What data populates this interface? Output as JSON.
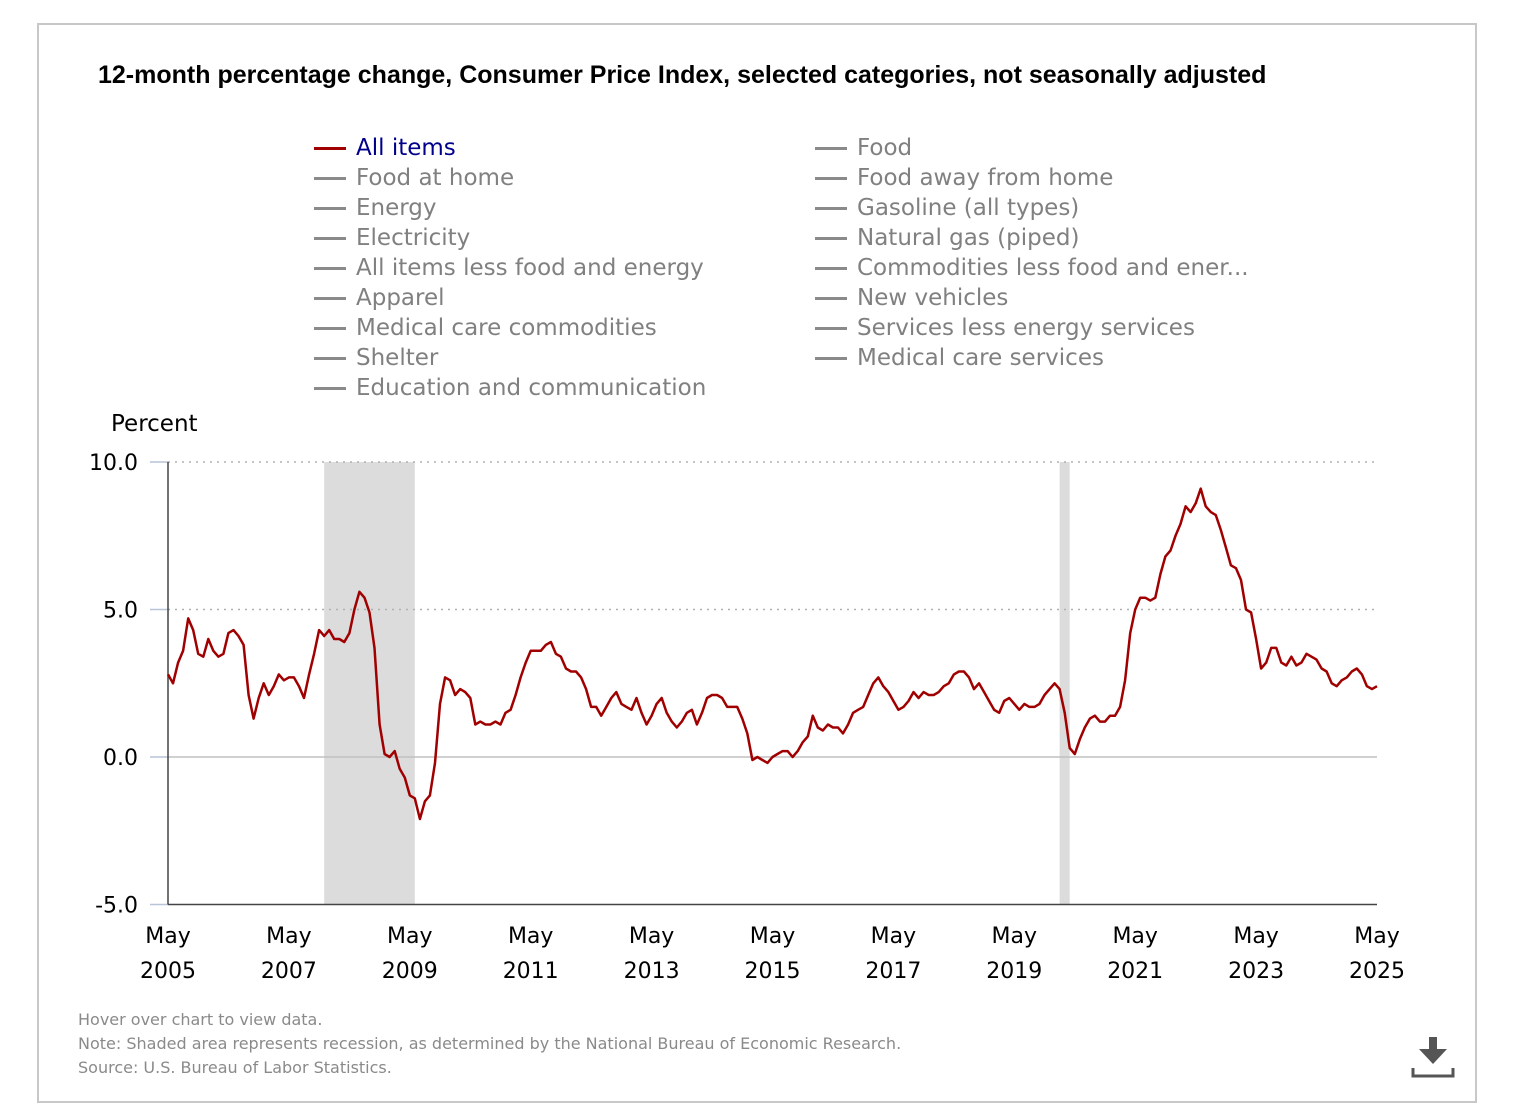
{
  "chart_data": {
    "type": "line",
    "title": "12-month percentage change, Consumer Price Index, selected categories, not seasonally adjusted",
    "ylabel": "Percent",
    "xlabel": "",
    "ylim": [
      -5,
      10
    ],
    "yticks": [
      "10.0",
      "5.0",
      "0.0",
      "-5.0"
    ],
    "ytick_values": [
      10,
      5,
      0,
      -5
    ],
    "x_start": "May 2005",
    "x_end": "May 2025",
    "xticks": [
      {
        "month": "May",
        "year": "2005",
        "index": 0
      },
      {
        "month": "May",
        "year": "2007",
        "index": 24
      },
      {
        "month": "May",
        "year": "2009",
        "index": 48
      },
      {
        "month": "May",
        "year": "2011",
        "index": 72
      },
      {
        "month": "May",
        "year": "2013",
        "index": 96
      },
      {
        "month": "May",
        "year": "2015",
        "index": 120
      },
      {
        "month": "May",
        "year": "2017",
        "index": 144
      },
      {
        "month": "May",
        "year": "2019",
        "index": 168
      },
      {
        "month": "May",
        "year": "2021",
        "index": 192
      },
      {
        "month": "May",
        "year": "2023",
        "index": 216
      },
      {
        "month": "May",
        "year": "2025",
        "index": 240
      }
    ],
    "grid": "horizontal dotted",
    "recessions": [
      {
        "start": "Dec 2007",
        "end": "Jun 2009",
        "start_index": 31,
        "end_index": 49
      },
      {
        "start": "Feb 2020",
        "end": "Apr 2020",
        "start_index": 177,
        "end_index": 179
      }
    ],
    "series": [
      {
        "name": "All items",
        "color": "#a00000",
        "values": [
          2.8,
          2.5,
          3.2,
          3.6,
          4.7,
          4.3,
          3.5,
          3.4,
          4.0,
          3.6,
          3.4,
          3.5,
          4.2,
          4.3,
          4.1,
          3.8,
          2.1,
          1.3,
          2.0,
          2.5,
          2.1,
          2.4,
          2.8,
          2.6,
          2.7,
          2.7,
          2.4,
          2.0,
          2.8,
          3.5,
          4.3,
          4.1,
          4.3,
          4.0,
          4.0,
          3.9,
          4.2,
          5.0,
          5.6,
          5.4,
          4.9,
          3.7,
          1.1,
          0.1,
          0.0,
          0.2,
          -0.4,
          -0.7,
          -1.3,
          -1.4,
          -2.1,
          -1.5,
          -1.3,
          -0.2,
          1.8,
          2.7,
          2.6,
          2.1,
          2.3,
          2.2,
          2.0,
          1.1,
          1.2,
          1.1,
          1.1,
          1.2,
          1.1,
          1.5,
          1.6,
          2.1,
          2.7,
          3.2,
          3.6,
          3.6,
          3.6,
          3.8,
          3.9,
          3.5,
          3.4,
          3.0,
          2.9,
          2.9,
          2.7,
          2.3,
          1.7,
          1.7,
          1.4,
          1.7,
          2.0,
          2.2,
          1.8,
          1.7,
          1.6,
          2.0,
          1.5,
          1.1,
          1.4,
          1.8,
          2.0,
          1.5,
          1.2,
          1.0,
          1.2,
          1.5,
          1.6,
          1.1,
          1.5,
          2.0,
          2.1,
          2.1,
          2.0,
          1.7,
          1.7,
          1.7,
          1.3,
          0.8,
          -0.1,
          0.0,
          -0.1,
          -0.2,
          0.0,
          0.1,
          0.2,
          0.2,
          0.0,
          0.2,
          0.5,
          0.7,
          1.4,
          1.0,
          0.9,
          1.1,
          1.0,
          1.0,
          0.8,
          1.1,
          1.5,
          1.6,
          1.7,
          2.1,
          2.5,
          2.7,
          2.4,
          2.2,
          1.9,
          1.6,
          1.7,
          1.9,
          2.2,
          2.0,
          2.2,
          2.1,
          2.1,
          2.2,
          2.4,
          2.5,
          2.8,
          2.9,
          2.9,
          2.7,
          2.3,
          2.5,
          2.2,
          1.9,
          1.6,
          1.5,
          1.9,
          2.0,
          1.8,
          1.6,
          1.8,
          1.7,
          1.7,
          1.8,
          2.1,
          2.3,
          2.5,
          2.3,
          1.5,
          0.3,
          0.1,
          0.6,
          1.0,
          1.3,
          1.4,
          1.2,
          1.2,
          1.4,
          1.4,
          1.7,
          2.6,
          4.2,
          5.0,
          5.4,
          5.4,
          5.3,
          5.4,
          6.2,
          6.8,
          7.0,
          7.5,
          7.9,
          8.5,
          8.3,
          8.6,
          9.1,
          8.5,
          8.3,
          8.2,
          7.7,
          7.1,
          6.5,
          6.4,
          6.0,
          5.0,
          4.9,
          4.0,
          3.0,
          3.2,
          3.7,
          3.7,
          3.2,
          3.1,
          3.4,
          3.1,
          3.2,
          3.5,
          3.4,
          3.3,
          3.0,
          2.9,
          2.5,
          2.4,
          2.6,
          2.7,
          2.9,
          3.0,
          2.8,
          2.4,
          2.3,
          2.4
        ]
      }
    ]
  },
  "legend": {
    "left": [
      "All items",
      "Food at home",
      "Energy",
      "Electricity",
      "All items less food and energy",
      "Apparel",
      "Medical care commodities",
      "Shelter",
      "Education and communication"
    ],
    "right": [
      "Food",
      "Food away from home",
      "Gasoline (all types)",
      "Natural gas (piped)",
      "Commodities less food and ener...",
      "New vehicles",
      "Services less energy services",
      "Medical care services"
    ],
    "active": "All items"
  },
  "notes": {
    "hover": "Hover over chart to view data.",
    "note": "Note: Shaded area represents recession, as determined by the National Bureau of Economic Research.",
    "source": "Source: U.S. Bureau of Labor Statistics."
  },
  "download_icon": "download-icon",
  "colors": {
    "series": "#a00000",
    "active_legend_text": "#00008b",
    "inactive": "#808080",
    "recession": "#dcdcdc"
  }
}
